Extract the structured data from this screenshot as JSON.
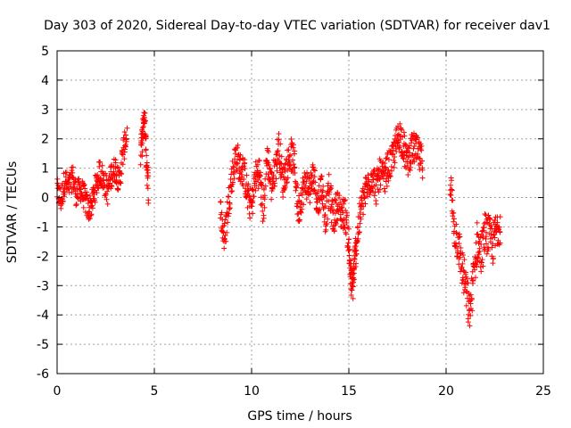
{
  "chart_data": {
    "type": "scatter",
    "title": "Day 303 of 2020, Sidereal Day-to-day VTEC variation (SDTVAR) for receiver dav1",
    "xlabel": "GPS time / hours",
    "ylabel": "SDTVAR / TECUs",
    "xlim": [
      0,
      25
    ],
    "ylim": [
      -6,
      5
    ],
    "xticks": [
      0,
      5,
      10,
      15,
      20,
      25
    ],
    "yticks": [
      -6,
      -5,
      -4,
      -3,
      -2,
      -1,
      0,
      1,
      2,
      3,
      4,
      5
    ],
    "grid": true,
    "marker": "+",
    "color": "#ff0000",
    "series": [
      {
        "name": "SDTVAR",
        "segments": [
          {
            "x": [
              0.0,
              0.2,
              0.4,
              0.6,
              0.8,
              1.0,
              1.2,
              1.4,
              1.6,
              1.8,
              2.0,
              2.2,
              2.4,
              2.6,
              2.8,
              3.0,
              3.2,
              3.4,
              3.6
            ],
            "y": [
              0.2,
              -0.1,
              0.6,
              0.3,
              0.7,
              0.1,
              0.3,
              0.0,
              -0.4,
              -0.2,
              0.4,
              0.9,
              0.6,
              0.2,
              0.8,
              1.0,
              0.5,
              1.6,
              2.2
            ],
            "spread": 0.45
          },
          {
            "x": [
              4.3,
              4.4,
              4.5,
              4.6,
              4.7
            ],
            "y": [
              1.5,
              2.2,
              2.7,
              1.3,
              0.2
            ],
            "spread": 0.5
          },
          {
            "x": [
              8.4,
              8.6,
              8.8,
              9.0,
              9.2,
              9.4,
              9.6,
              9.8,
              10.0,
              10.2,
              10.4,
              10.6,
              10.8,
              11.0,
              11.2,
              11.4,
              11.6,
              11.8,
              12.0,
              12.2,
              12.4,
              12.6,
              12.8,
              13.0,
              13.2,
              13.4,
              13.6,
              13.8,
              14.0,
              14.2,
              14.4,
              14.6,
              14.8,
              15.0,
              15.1,
              15.2,
              15.3,
              15.4,
              15.6,
              15.8,
              16.0,
              16.2,
              16.4,
              16.6,
              16.8,
              17.0,
              17.2,
              17.4,
              17.6,
              17.8,
              18.0,
              18.2,
              18.4,
              18.6,
              18.8
            ],
            "y": [
              -0.4,
              -1.5,
              -0.2,
              0.7,
              1.5,
              1.0,
              0.9,
              0.0,
              -0.3,
              0.7,
              0.9,
              -0.5,
              1.5,
              0.4,
              0.9,
              1.8,
              0.5,
              1.0,
              1.5,
              1.2,
              -0.5,
              0.2,
              0.5,
              0.3,
              0.8,
              -0.3,
              0.5,
              -0.7,
              0.3,
              -0.8,
              -0.2,
              -0.6,
              -0.5,
              -1.5,
              -2.8,
              -3.0,
              -2.2,
              -1.5,
              -0.5,
              0.1,
              0.4,
              0.8,
              0.3,
              0.8,
              0.6,
              1.0,
              1.2,
              1.7,
              2.2,
              1.8,
              1.2,
              1.6,
              1.7,
              1.4,
              1.2
            ],
            "spread": 0.55
          },
          {
            "x": [
              20.2,
              20.4,
              20.6,
              20.8,
              21.0,
              21.2,
              21.4,
              21.6,
              21.8,
              22.0,
              22.2,
              22.4,
              22.6,
              22.8
            ],
            "y": [
              0.6,
              -1.0,
              -1.5,
              -2.3,
              -3.0,
              -4.0,
              -2.8,
              -1.5,
              -2.0,
              -1.2,
              -1.3,
              -1.6,
              -1.1,
              -0.8
            ],
            "spread": 0.7
          }
        ]
      }
    ]
  }
}
